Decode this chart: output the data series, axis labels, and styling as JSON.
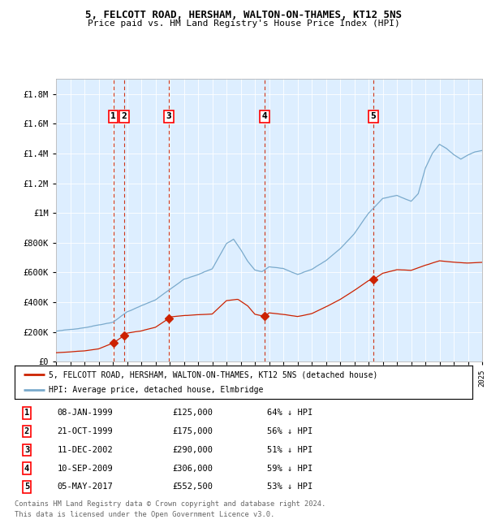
{
  "title_line1": "5, FELCOTT ROAD, HERSHAM, WALTON-ON-THAMES, KT12 5NS",
  "title_line2": "Price paid vs. HM Land Registry's House Price Index (HPI)",
  "legend_label_red": "5, FELCOTT ROAD, HERSHAM, WALTON-ON-THAMES, KT12 5NS (detached house)",
  "legend_label_blue": "HPI: Average price, detached house, Elmbridge",
  "footer_line1": "Contains HM Land Registry data © Crown copyright and database right 2024.",
  "footer_line2": "This data is licensed under the Open Government Licence v3.0.",
  "transactions": [
    {
      "num": 1,
      "date": "08-JAN-1999",
      "price": 125000,
      "hpi_pct": "64% ↓ HPI",
      "year": 1999.03
    },
    {
      "num": 2,
      "date": "21-OCT-1999",
      "price": 175000,
      "hpi_pct": "56% ↓ HPI",
      "year": 1999.8
    },
    {
      "num": 3,
      "date": "11-DEC-2002",
      "price": 290000,
      "hpi_pct": "51% ↓ HPI",
      "year": 2002.94
    },
    {
      "num": 4,
      "date": "10-SEP-2009",
      "price": 306000,
      "hpi_pct": "59% ↓ HPI",
      "year": 2009.69
    },
    {
      "num": 5,
      "date": "05-MAY-2017",
      "price": 552500,
      "hpi_pct": "53% ↓ HPI",
      "year": 2017.34
    }
  ],
  "background_color": "#ddeeff",
  "red_color": "#cc2200",
  "blue_color": "#7aaacc",
  "dashed_color": "#cc2200",
  "xmin": 1995,
  "xmax": 2025,
  "ymin": 0,
  "ymax": 1900000,
  "yticks": [
    0,
    200000,
    400000,
    600000,
    800000,
    1000000,
    1200000,
    1400000,
    1600000,
    1800000
  ]
}
